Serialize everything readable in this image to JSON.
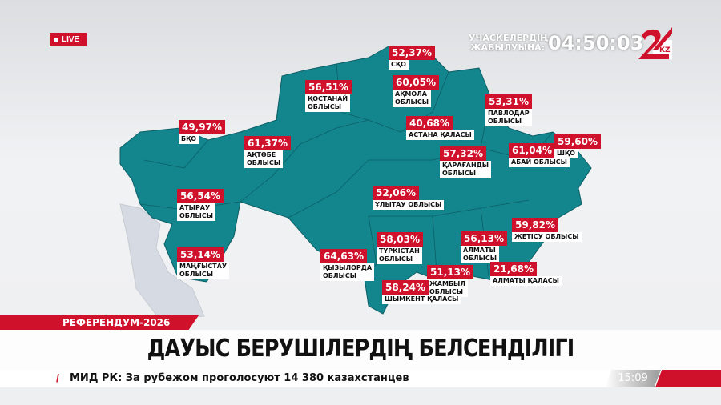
{
  "live_badge": "LIVE",
  "countdown": {
    "label": "УЧАСКЕЛЕРДІҢ\nЖАБЫЛУЫНА:",
    "time": "04:50:03"
  },
  "logo": {
    "text": "KZ",
    "colors": [
      "#d0112b",
      "#ffffff"
    ]
  },
  "colors": {
    "region": "#13858d",
    "accent": "#d0112b"
  },
  "regions": [
    {
      "pct": "52,37%",
      "name": "СҚО"
    },
    {
      "pct": "56,51%",
      "name": "ҚОСТАНАЙ\nОБЛЫСЫ"
    },
    {
      "pct": "60,05%",
      "name": "АҚМОЛА\nОБЛЫСЫ"
    },
    {
      "pct": "53,31%",
      "name": "ПАВЛОДАР\nОБЛЫСЫ"
    },
    {
      "pct": "49,97%",
      "name": "БҚО"
    },
    {
      "pct": "61,37%",
      "name": "АҚТӨБЕ\nОБЛЫСЫ"
    },
    {
      "pct": "40,68%",
      "name": "АСТАНА ҚАЛАСЫ"
    },
    {
      "pct": "57,32%",
      "name": "ҚАРАҒАНДЫ\nОБЛЫСЫ"
    },
    {
      "pct": "61,04%",
      "name": "АБАЙ ОБЛЫСЫ"
    },
    {
      "pct": "59,60%",
      "name": "ШҚО"
    },
    {
      "pct": "56,54%",
      "name": "АТЫРАУ\nОБЛЫСЫ"
    },
    {
      "pct": "52,06%",
      "name": "ҰЛЫТАУ ОБЛЫСЫ"
    },
    {
      "pct": "59,82%",
      "name": "ЖЕТІСУ ОБЛЫСЫ"
    },
    {
      "pct": "53,14%",
      "name": "МАҢҒЫСТАУ\nОБЛЫСЫ"
    },
    {
      "pct": "64,63%",
      "name": "ҚЫЗЫЛОРДА\nОБЛЫСЫ"
    },
    {
      "pct": "58,03%",
      "name": "ТҮРКІСТАН\nОБЛЫСЫ"
    },
    {
      "pct": "56,13%",
      "name": "АЛМАТЫ\nОБЛЫСЫ"
    },
    {
      "pct": "21,68%",
      "name": "АЛМАТЫ ҚАЛАСЫ"
    },
    {
      "pct": "51,13%",
      "name": "ЖАМБЫЛ\nОБЛЫСЫ"
    },
    {
      "pct": "58,24%",
      "name": "ШЫМКЕНТ ҚАЛАСЫ"
    }
  ],
  "section_tag": "РЕФЕРЕНДУМ-2026",
  "headline": "ДАУЫС БЕРУШІЛЕРДІҢ БЕЛСЕНДІЛІГІ",
  "ticker": {
    "text": "МИД РК: За рубежом проголосуют 14 380 казахстанцев",
    "time": "15:09"
  }
}
